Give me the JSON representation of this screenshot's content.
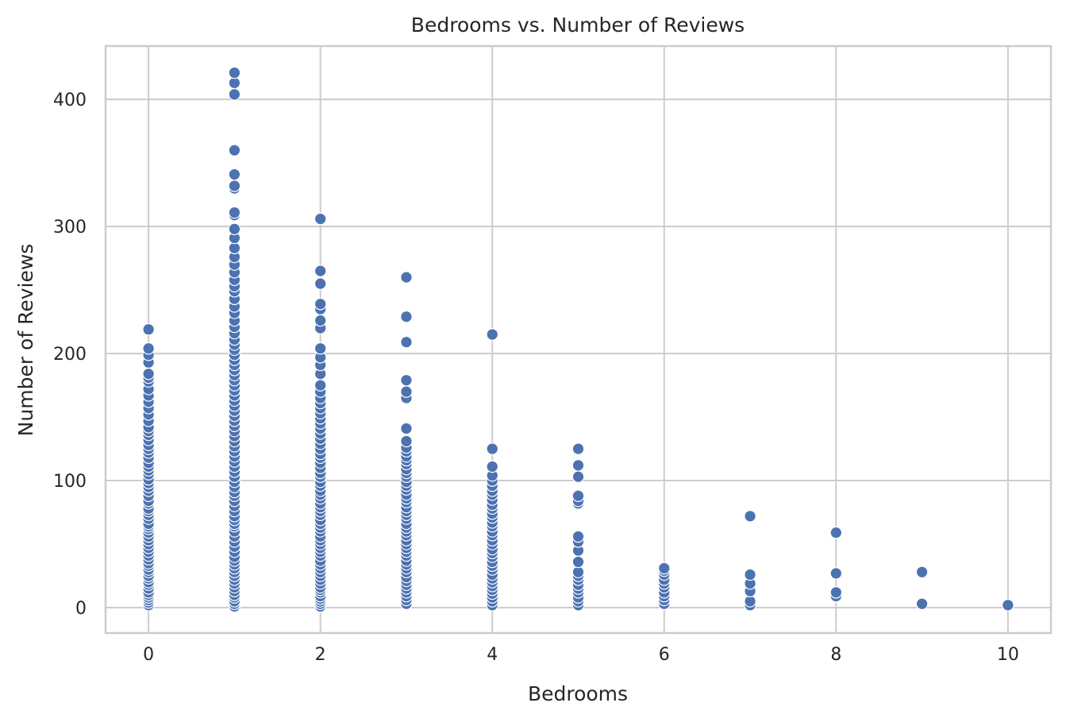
{
  "chart_data": {
    "type": "scatter",
    "title": "Bedrooms vs. Number of Reviews",
    "xlabel": "Bedrooms",
    "ylabel": "Number of Reviews",
    "xlim": [
      -0.5,
      10.5
    ],
    "ylim": [
      -20,
      442
    ],
    "xticks": [
      0,
      2,
      4,
      6,
      8,
      10
    ],
    "yticks": [
      0,
      100,
      200,
      300,
      400
    ],
    "grid": true,
    "color": "#4c72b0",
    "points": {
      "0": [
        2,
        4,
        6,
        8,
        10,
        12,
        15,
        18,
        20,
        23,
        25,
        28,
        30,
        33,
        35,
        38,
        41,
        44,
        47,
        50,
        53,
        56,
        59,
        62,
        64,
        66,
        70,
        73,
        76,
        78,
        82,
        84,
        88,
        92,
        95,
        98,
        101,
        105,
        108,
        111,
        114,
        118,
        122,
        125,
        128,
        132,
        136,
        139,
        142,
        147,
        152,
        157,
        162,
        167,
        172,
        178,
        181,
        184,
        193,
        199,
        204,
        219
      ],
      "1": [
        1,
        3,
        5,
        8,
        10,
        13,
        16,
        19,
        22,
        25,
        28,
        31,
        34,
        37,
        40,
        44,
        48,
        52,
        56,
        60,
        64,
        66,
        69,
        72,
        76,
        80,
        84,
        88,
        91,
        95,
        99,
        103,
        107,
        111,
        115,
        119,
        123,
        127,
        131,
        135,
        139,
        143,
        147,
        151,
        155,
        159,
        163,
        167,
        171,
        175,
        179,
        183,
        187,
        191,
        195,
        199,
        203,
        207,
        211,
        216,
        221,
        226,
        232,
        237,
        243,
        249,
        253,
        258,
        264,
        270,
        276,
        283,
        291,
        298,
        309,
        311,
        330,
        332,
        341,
        360,
        404,
        413,
        421
      ],
      "2": [
        1,
        3,
        5,
        7,
        9,
        12,
        14,
        16,
        19,
        22,
        25,
        28,
        31,
        34,
        37,
        41,
        44,
        47,
        50,
        53,
        56,
        60,
        63,
        66,
        69,
        73,
        76,
        79,
        82,
        86,
        89,
        92,
        96,
        99,
        103,
        106,
        110,
        114,
        118,
        121,
        125,
        129,
        133,
        137,
        141,
        145,
        149,
        153,
        157,
        161,
        165,
        170,
        175,
        184,
        191,
        197,
        204,
        220,
        226,
        235,
        239,
        255,
        265,
        306
      ],
      "3": [
        3,
        6,
        9,
        12,
        15,
        18,
        21,
        24,
        28,
        31,
        34,
        37,
        41,
        44,
        47,
        50,
        53,
        57,
        60,
        63,
        66,
        70,
        73,
        76,
        79,
        83,
        86,
        89,
        93,
        96,
        99,
        103,
        106,
        109,
        113,
        116,
        119,
        123,
        126,
        131,
        141,
        165,
        170,
        179,
        209,
        229,
        260
      ],
      "4": [
        2,
        5,
        8,
        11,
        14,
        17,
        20,
        23,
        26,
        30,
        33,
        36,
        40,
        43,
        46,
        50,
        53,
        57,
        60,
        64,
        67,
        71,
        74,
        78,
        81,
        85,
        89,
        92,
        96,
        100,
        104,
        111,
        125,
        215
      ],
      "5": [
        2,
        5,
        8,
        12,
        15,
        18,
        22,
        25,
        28,
        36,
        45,
        52,
        56,
        82,
        84,
        88,
        103,
        112,
        125
      ],
      "6": [
        3,
        6,
        9,
        12,
        16,
        19,
        22,
        26,
        29,
        31
      ],
      "7": [
        2,
        5,
        13,
        19,
        26,
        72
      ],
      "8": [
        9,
        12,
        27,
        59
      ],
      "9": [
        3,
        28
      ],
      "10": [
        2
      ]
    }
  }
}
